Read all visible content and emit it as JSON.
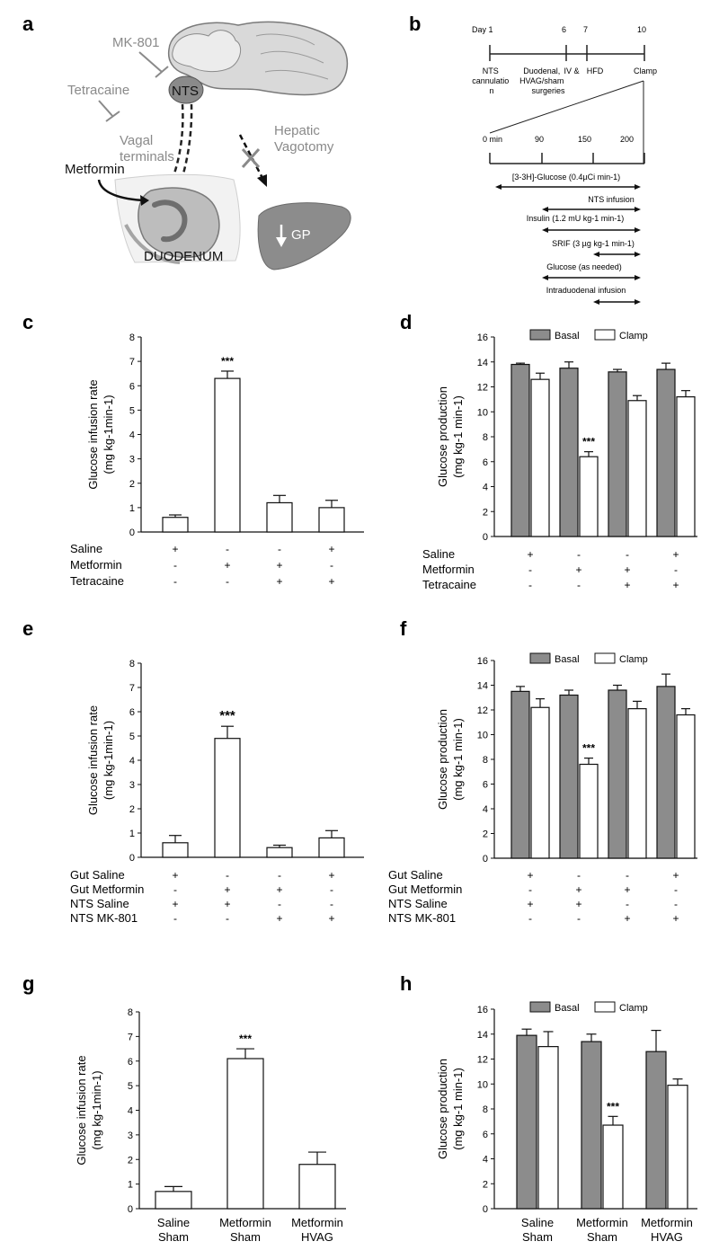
{
  "panel_labels": {
    "a": "a",
    "b": "b",
    "c": "c",
    "d": "d",
    "e": "e",
    "f": "f",
    "g": "g",
    "h": "h"
  },
  "diagram_a": {
    "mk801": "MK-801",
    "nts": "NTS",
    "tetracaine": "Tetracaine",
    "vagal_terminals": [
      "Vagal",
      "terminals"
    ],
    "metformin": "Metformin",
    "hepatic_vagotomy": [
      "Hepatic",
      "Vagotomy"
    ],
    "duodenum": "DUODENUM",
    "gp": "GP"
  },
  "timeline_b": {
    "day_label": "Day 1",
    "day_ticks": [
      "6",
      "7",
      "10"
    ],
    "phases": [
      [
        "NTS",
        "cannulatio",
        "n"
      ],
      [
        "Duodenal,",
        "HVAG/sham",
        "surgeries"
      ],
      [
        "IV &"
      ],
      [
        "HFD"
      ],
      [
        "Clamp"
      ]
    ],
    "min_ticks": [
      "0 min",
      "90",
      "150",
      "200"
    ],
    "infusions": [
      "[3-3H]-Glucose (0.4µCi min-1)",
      "NTS infusion",
      "Insulin (1.2 mU kg-1 min-1)",
      "SRIF (3 µg kg-1 min-1)",
      "Glucose (as needed)",
      "Intraduodenal infusion"
    ]
  },
  "chart_data": [
    {
      "panel": "c",
      "type": "bar",
      "ylabel": [
        "Glucose infusion rate",
        "(mg kg-1min-1)"
      ],
      "ylim": [
        0,
        8
      ],
      "yticks": [
        0,
        1,
        2,
        3,
        4,
        5,
        6,
        7,
        8
      ],
      "values": [
        0.6,
        6.3,
        1.2,
        1.0
      ],
      "errors": [
        0.1,
        0.3,
        0.3,
        0.3
      ],
      "significance": [
        "",
        "***",
        "",
        ""
      ],
      "row_labels": [
        "Saline",
        "Metformin",
        "Tetracaine"
      ],
      "signs": [
        [
          "+",
          "-",
          "-",
          "+"
        ],
        [
          "-",
          "+",
          "+",
          "-"
        ],
        [
          "-",
          "-",
          "+",
          "+"
        ]
      ]
    },
    {
      "panel": "d",
      "type": "bar",
      "ylabel": [
        "Glucose production",
        "(mg kg-1 min-1)"
      ],
      "ylim": [
        0,
        16
      ],
      "yticks": [
        0,
        2,
        4,
        6,
        8,
        10,
        12,
        14,
        16
      ],
      "legend": "top",
      "series": [
        {
          "name": "Basal",
          "color": "#8c8c8c",
          "values": [
            13.8,
            13.5,
            13.2,
            13.4
          ],
          "errors": [
            0.1,
            0.5,
            0.2,
            0.5
          ]
        },
        {
          "name": "Clamp",
          "color": "#ffffff",
          "values": [
            12.6,
            6.4,
            10.9,
            11.2
          ],
          "errors": [
            0.5,
            0.4,
            0.4,
            0.5
          ]
        }
      ],
      "significance": [
        [
          "",
          "",
          "",
          ""
        ],
        [
          "",
          "***",
          "",
          ""
        ]
      ],
      "row_labels": [
        "Saline",
        "Metformin",
        "Tetracaine"
      ],
      "signs": [
        [
          "+",
          "-",
          "-",
          "+"
        ],
        [
          "-",
          "+",
          "+",
          "-"
        ],
        [
          "-",
          "-",
          "+",
          "+"
        ]
      ]
    },
    {
      "panel": "e",
      "type": "bar",
      "ylabel": [
        "Glucose infusion rate",
        "(mg kg-1min-1)"
      ],
      "ylim": [
        0,
        8
      ],
      "yticks": [
        0,
        1,
        2,
        3,
        4,
        5,
        6,
        7,
        8
      ],
      "values": [
        0.6,
        4.9,
        0.4,
        0.8
      ],
      "errors": [
        0.3,
        0.5,
        0.1,
        0.3
      ],
      "significance": [
        "",
        "***",
        "",
        ""
      ],
      "row_labels": [
        "Gut Saline",
        "Gut Metformin",
        "NTS Saline",
        "NTS MK-801"
      ],
      "signs": [
        [
          "+",
          "-",
          "-",
          "+"
        ],
        [
          "-",
          "+",
          "+",
          "-"
        ],
        [
          "+",
          "+",
          "-",
          "-"
        ],
        [
          "-",
          "-",
          "+",
          "+"
        ]
      ]
    },
    {
      "panel": "f",
      "type": "bar",
      "ylabel": [
        "Glucose production",
        "(mg kg-1 min-1)"
      ],
      "ylim": [
        0,
        16
      ],
      "yticks": [
        0,
        2,
        4,
        6,
        8,
        10,
        12,
        14,
        16
      ],
      "legend": "top",
      "series": [
        {
          "name": "Basal",
          "color": "#8c8c8c",
          "values": [
            13.5,
            13.2,
            13.6,
            13.9
          ],
          "errors": [
            0.4,
            0.4,
            0.4,
            1.0
          ]
        },
        {
          "name": "Clamp",
          "color": "#ffffff",
          "values": [
            12.2,
            7.6,
            12.1,
            11.6
          ],
          "errors": [
            0.7,
            0.5,
            0.6,
            0.5
          ]
        }
      ],
      "significance": [
        [
          "",
          "",
          "",
          ""
        ],
        [
          "",
          "***",
          "",
          ""
        ]
      ],
      "row_labels": [
        "Gut Saline",
        "Gut Metformin",
        "NTS Saline",
        "NTS MK-801"
      ],
      "signs": [
        [
          "+",
          "-",
          "-",
          "+"
        ],
        [
          "-",
          "+",
          "+",
          "-"
        ],
        [
          "+",
          "+",
          "-",
          "-"
        ],
        [
          "-",
          "-",
          "+",
          "+"
        ]
      ]
    },
    {
      "panel": "g",
      "type": "bar",
      "ylabel": [
        "Glucose infusion rate",
        "(mg kg-1min-1)"
      ],
      "ylim": [
        0,
        8
      ],
      "yticks": [
        0,
        1,
        2,
        3,
        4,
        5,
        6,
        7,
        8
      ],
      "categories": [
        [
          "Saline",
          "Sham"
        ],
        [
          "Metformin",
          "Sham"
        ],
        [
          "Metformin",
          "HVAG"
        ]
      ],
      "values": [
        0.7,
        6.1,
        1.8
      ],
      "errors": [
        0.2,
        0.4,
        0.5
      ],
      "significance": [
        "",
        "***",
        ""
      ]
    },
    {
      "panel": "h",
      "type": "bar",
      "ylabel": [
        "Glucose production",
        "(mg kg-1 min-1)"
      ],
      "ylim": [
        0,
        16
      ],
      "yticks": [
        0,
        2,
        4,
        6,
        8,
        10,
        12,
        14,
        16
      ],
      "legend": "top",
      "categories": [
        [
          "Saline",
          "Sham"
        ],
        [
          "Metformin",
          "Sham"
        ],
        [
          "Metformin",
          "HVAG"
        ]
      ],
      "series": [
        {
          "name": "Basal",
          "color": "#8c8c8c",
          "values": [
            13.9,
            13.4,
            12.6
          ],
          "errors": [
            0.5,
            0.6,
            1.7
          ]
        },
        {
          "name": "Clamp",
          "color": "#ffffff",
          "values": [
            13.0,
            6.7,
            9.9
          ],
          "errors": [
            1.2,
            0.7,
            0.5
          ]
        }
      ],
      "significance": [
        [
          "",
          "",
          ""
        ],
        [
          "",
          "***",
          ""
        ]
      ]
    }
  ]
}
